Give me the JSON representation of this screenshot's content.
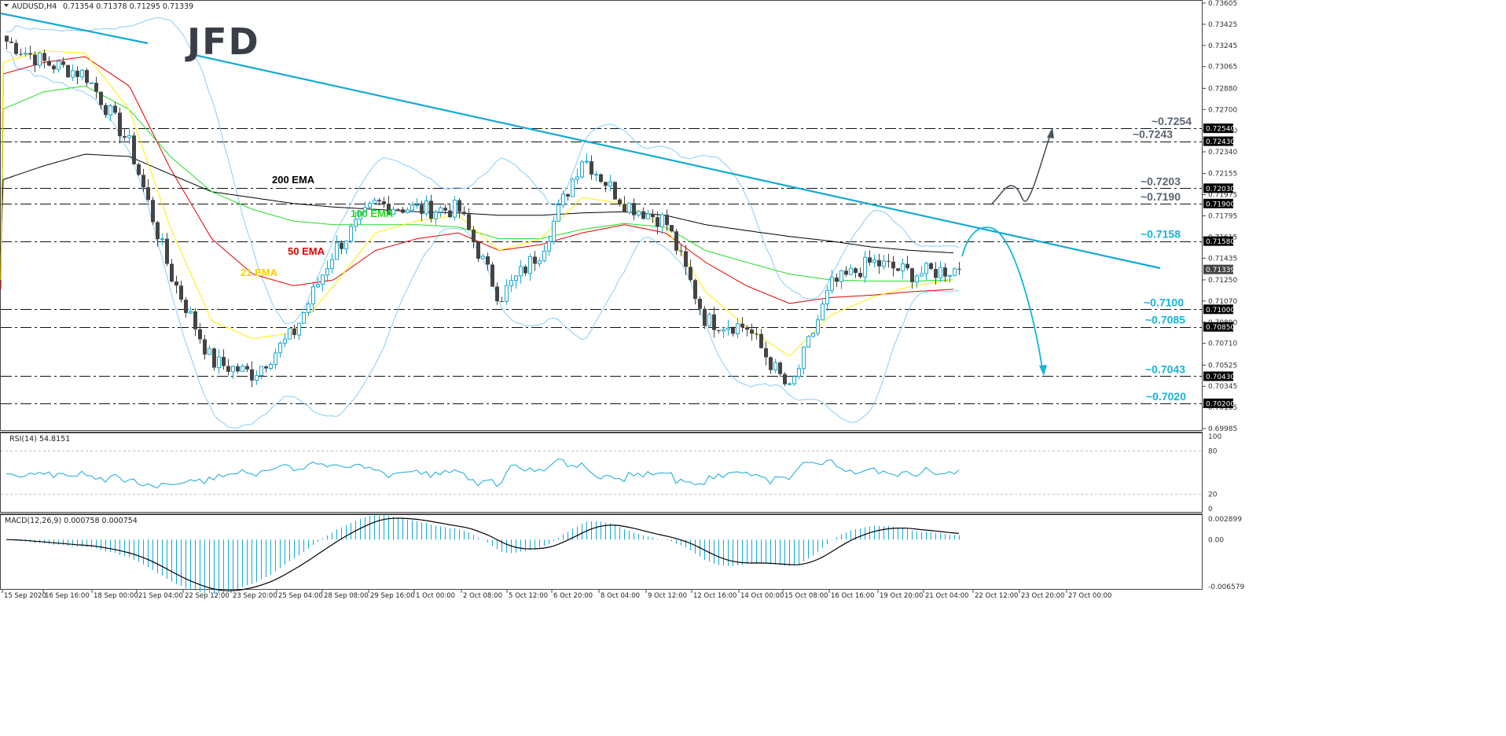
{
  "header": {
    "dropdown_icon": "triangle-down-icon",
    "symbol": "AUDUSD,H4",
    "ohlc": "0.71354 0.71378 0.71295 0.71339"
  },
  "logo": {
    "text": "JFD"
  },
  "colors": {
    "bull": "#1aa7d1",
    "bear": "#444444",
    "ema21": "#ffee00",
    "ema50": "#e00000",
    "ema100": "#22dd22",
    "ema200": "#000000",
    "bollinger": "#87cefa",
    "trendline": "#14a9d6",
    "support_label": "#14b4dc",
    "resistance_label": "#5a6470",
    "up_arrow": "#4a5560",
    "down_arrow": "#14b4dc",
    "rsi": "#14a9d6",
    "macd_hist": "#14a9d6",
    "macd_signal": "#000000"
  },
  "ema_labels": {
    "ema200": "200 EMA",
    "ema100": "100 EMA",
    "ema50": "50 EMA",
    "ema21": "21 EMA"
  },
  "levels": [
    {
      "price": 0.7254,
      "label": "~0.7254",
      "tag": "0.72540",
      "type": "resistance"
    },
    {
      "price": 0.7243,
      "label": "~0.7243",
      "tag": "0.72430",
      "type": "resistance"
    },
    {
      "price": 0.7203,
      "label": "~0.7203",
      "tag": "0.72030",
      "type": "resistance"
    },
    {
      "price": 0.719,
      "label": "~0.7190",
      "tag": "0.71900",
      "type": "resistance"
    },
    {
      "price": 0.7158,
      "label": "~0.7158",
      "tag": "0.71580",
      "type": "support"
    },
    {
      "price": 0.71,
      "label": "~0.7100",
      "tag": "0.71000",
      "type": "support"
    },
    {
      "price": 0.7085,
      "label": "~0.7085",
      "tag": "0.70850",
      "type": "support"
    },
    {
      "price": 0.7043,
      "label": "~0.7043",
      "tag": "0.70430",
      "type": "support"
    },
    {
      "price": 0.702,
      "label": "~0.7020",
      "tag": "0.70200",
      "type": "support"
    }
  ],
  "price_axis": {
    "ticks": [
      "0.73605",
      "0.73425",
      "0.73245",
      "0.73065",
      "0.72880",
      "0.72700",
      "0.72520",
      "0.72340",
      "0.72155",
      "0.71975",
      "0.71795",
      "0.71615",
      "0.71435",
      "0.71250",
      "0.71070",
      "0.70890",
      "0.70710",
      "0.70525",
      "0.70345",
      "0.70165",
      "0.69985"
    ],
    "current_price": "0.71339"
  },
  "rsi": {
    "title": "RSI(14) 54.8151",
    "ticks": [
      "100",
      "80",
      "20",
      "0"
    ]
  },
  "macd": {
    "title": "MACD(12,26,9) 0.000758 0.000754",
    "ticks": [
      "0.002899",
      "0.00",
      "-0.006579"
    ]
  },
  "time_axis": {
    "labels": [
      "15 Sep 2020",
      "16 Sep 16:00",
      "18 Sep 00:00",
      "21 Sep 04:00",
      "22 Sep 12:00",
      "23 Sep 20:00",
      "25 Sep 04:00",
      "28 Sep 08:00",
      "29 Sep 16:00",
      "1 Oct 00:00",
      "2 Oct 08:00",
      "5 Oct 12:00",
      "6 Oct 20:00",
      "8 Oct 04:00",
      "9 Oct 12:00",
      "12 Oct 16:00",
      "14 Oct 00:00",
      "15 Oct 08:00",
      "16 Oct 16:00",
      "19 Oct 20:00",
      "21 Oct 04:00",
      "22 Oct 12:00",
      "23 Oct 20:00",
      "27 Oct 00:00"
    ]
  },
  "chart_data": {
    "type": "candlestick",
    "title": "AUDUSD,H4",
    "subtitle": "0.71354 0.71378 0.71295 0.71339",
    "xlabel": "",
    "ylabel": "",
    "ylim": [
      0.69985,
      0.73605
    ],
    "grid": false,
    "x": [
      "15 Sep 2020",
      "16 Sep 16:00",
      "18 Sep 00:00",
      "21 Sep 04:00",
      "22 Sep 12:00",
      "23 Sep 20:00",
      "25 Sep 04:00",
      "28 Sep 08:00",
      "29 Sep 16:00",
      "1 Oct 00:00",
      "2 Oct 08:00",
      "5 Oct 12:00",
      "6 Oct 20:00",
      "8 Oct 04:00",
      "9 Oct 12:00",
      "12 Oct 16:00",
      "14 Oct 00:00",
      "15 Oct 08:00",
      "16 Oct 16:00",
      "19 Oct 20:00",
      "21 Oct 04:00",
      "22 Oct 12:00",
      "23 Oct 20:00",
      "27 Oct 00:00"
    ],
    "series": [
      {
        "name": "AUDUSD close (approx at time labels)",
        "values": [
          0.733,
          0.731,
          0.73,
          0.724,
          0.713,
          0.7055,
          0.7045,
          0.708,
          0.715,
          0.719,
          0.7185,
          0.7185,
          0.711,
          0.715,
          0.723,
          0.719,
          0.7175,
          0.709,
          0.7085,
          0.703,
          0.712,
          0.714,
          0.713,
          0.7134
        ]
      },
      {
        "name": "200 EMA",
        "values": [
          0.721,
          0.7222,
          0.7232,
          0.723,
          0.7215,
          0.72,
          0.7195,
          0.719,
          0.7187,
          0.7185,
          0.7183,
          0.7182,
          0.718,
          0.718,
          0.7182,
          0.7183,
          0.718,
          0.7172,
          0.7167,
          0.7162,
          0.7158,
          0.7153,
          0.715,
          0.7148
        ]
      },
      {
        "name": "100 EMA",
        "values": [
          0.727,
          0.7285,
          0.729,
          0.727,
          0.723,
          0.72,
          0.7185,
          0.7175,
          0.7172,
          0.7172,
          0.7172,
          0.717,
          0.716,
          0.716,
          0.7168,
          0.7173,
          0.717,
          0.715,
          0.714,
          0.713,
          0.7125,
          0.7124,
          0.7124,
          0.7125
        ]
      },
      {
        "name": "50 EMA",
        "values": [
          0.73,
          0.731,
          0.7315,
          0.729,
          0.722,
          0.716,
          0.713,
          0.712,
          0.7125,
          0.715,
          0.716,
          0.7165,
          0.715,
          0.7155,
          0.7165,
          0.7172,
          0.7165,
          0.714,
          0.712,
          0.7105,
          0.711,
          0.7112,
          0.7115,
          0.7117
        ]
      },
      {
        "name": "21 EMA",
        "values": [
          0.731,
          0.732,
          0.7318,
          0.727,
          0.717,
          0.709,
          0.7075,
          0.708,
          0.712,
          0.7165,
          0.7175,
          0.718,
          0.715,
          0.716,
          0.7195,
          0.719,
          0.717,
          0.7115,
          0.7085,
          0.706,
          0.7095,
          0.711,
          0.712,
          0.7125
        ]
      }
    ],
    "annotations": [
      "200 EMA",
      "100 EMA",
      "50 EMA",
      "21 EMA",
      "~0.7254",
      "~0.7243",
      "~0.7203",
      "~0.7190",
      "~0.7158",
      "~0.7100",
      "~0.7085",
      "~0.7043",
      "~0.7020"
    ],
    "trendline": {
      "from": [
        0,
        0.735
      ],
      "to": [
        1475,
        0.714
      ]
    },
    "rsi": {
      "name": "RSI(14)",
      "last": 54.8151,
      "levels": [
        80,
        20
      ],
      "ylim": [
        0,
        100
      ]
    },
    "macd": {
      "name": "MACD(12,26,9)",
      "main": 0.000758,
      "signal": 0.000754,
      "ylim": [
        -0.006579,
        0.002899
      ]
    }
  }
}
